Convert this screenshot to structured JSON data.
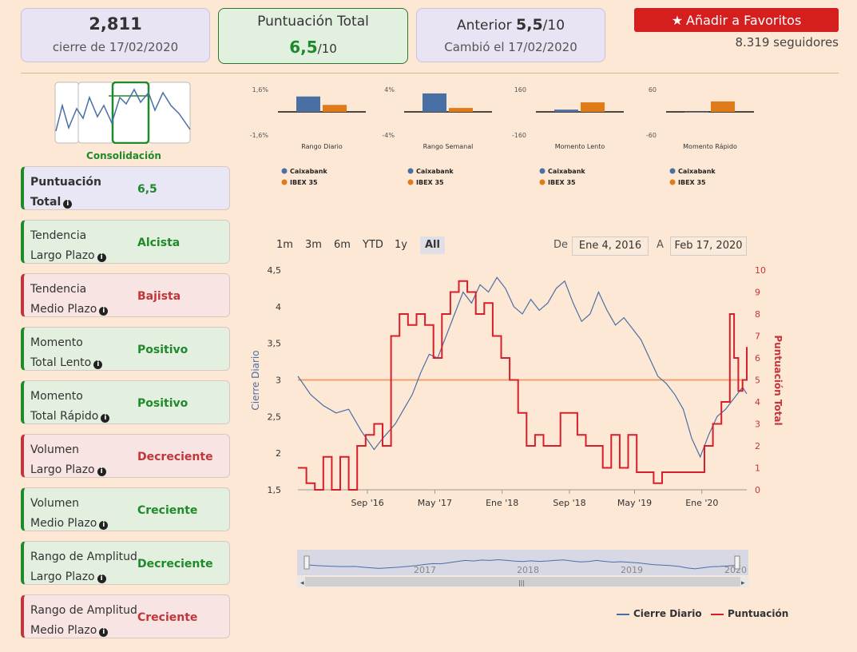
{
  "header": {
    "price_value": "2,811",
    "price_sub": "cierre de 17/02/2020",
    "total_title": "Puntuación Total",
    "total_score": "6,5",
    "total_suffix": "/10",
    "prev_label": "Anterior ",
    "prev_score": "5,5",
    "prev_suffix": "/10",
    "prev_sub": "Cambió el 17/02/2020",
    "fav_label": "Añadir a Favoritos",
    "followers": "8.319 seguidores"
  },
  "phase_label": "Consolidación",
  "cards": [
    {
      "l1": "Puntuación",
      "l2": "Total",
      "value": "6,5",
      "tone": "p"
    },
    {
      "l1": "Tendencia",
      "l2": "Largo Plazo",
      "value": "Alcista",
      "tone": "g"
    },
    {
      "l1": "Tendencia",
      "l2": "Medio Plazo",
      "value": "Bajista",
      "tone": "r"
    },
    {
      "l1": "Momento",
      "l2": "Total Lento",
      "value": "Positivo",
      "tone": "g"
    },
    {
      "l1": "Momento",
      "l2": "Total Rápido",
      "value": "Positivo",
      "tone": "g"
    },
    {
      "l1": "Volumen",
      "l2": "Largo Plazo",
      "value": "Decreciente",
      "tone": "r"
    },
    {
      "l1": "Volumen",
      "l2": "Medio Plazo",
      "value": "Creciente",
      "tone": "g"
    },
    {
      "l1": "Rango de Amplitud",
      "l2": "Largo Plazo",
      "value": "Decreciente",
      "tone": "g"
    },
    {
      "l1": "Rango de Amplitud",
      "l2": "Medio Plazo",
      "value": "Creciente",
      "tone": "r"
    }
  ],
  "range": {
    "buttons": [
      "1m",
      "3m",
      "6m",
      "YTD",
      "1y",
      "All"
    ],
    "selected": "All",
    "from_label": "De",
    "from_value": "Ene 4, 2016",
    "to_label": "A",
    "to_value": "Feb 17, 2020"
  },
  "navigator_labels": [
    "2017",
    "2018",
    "2019",
    "2020"
  ],
  "legend": {
    "series1": "Cierre Diario",
    "series2": "Puntuación"
  },
  "colors": {
    "caixa": "#4a6fa5",
    "ibex": "#e07b1a",
    "line": "#4a6fa5",
    "score": "#d51f2a",
    "ref": "#f0a070"
  },
  "chart_data": [
    {
      "type": "bar",
      "title": "Rango Diario",
      "categories": [
        "Caixabank",
        "IBEX 35"
      ],
      "values": [
        1.1,
        0.5
      ],
      "ylim": [
        -1.6,
        1.6
      ],
      "ytick_labels": [
        "1,6%",
        "-1,6%"
      ]
    },
    {
      "type": "bar",
      "title": "Rango Semanal",
      "categories": [
        "Caixabank",
        "IBEX 35"
      ],
      "values": [
        3.3,
        0.7
      ],
      "ylim": [
        -4,
        4
      ],
      "ytick_labels": [
        "4%",
        "-4%"
      ]
    },
    {
      "type": "bar",
      "title": "Momento Lento",
      "categories": [
        "Caixabank",
        "IBEX 35"
      ],
      "values": [
        16,
        68
      ],
      "ylim": [
        -160,
        160
      ],
      "ytick_labels": [
        "160",
        "-160"
      ]
    },
    {
      "type": "bar",
      "title": "Momento Rápido",
      "categories": [
        "Caixabank",
        "IBEX 35"
      ],
      "values": [
        0,
        28
      ],
      "ylim": [
        -60,
        60
      ],
      "ytick_labels": [
        "60",
        "-60"
      ]
    },
    {
      "type": "line",
      "xlabel": "",
      "ylabel": "Cierre Diario",
      "ylabel_right": "Puntuación Total",
      "ylim": [
        1.5,
        4.5
      ],
      "ylim_right": [
        0,
        10
      ],
      "yticks": [
        "1,5",
        "2",
        "2,5",
        "3",
        "3,5",
        "4",
        "4,5"
      ],
      "yticks_right": [
        "0",
        "1",
        "2",
        "3",
        "4",
        "5",
        "6",
        "7",
        "8",
        "9",
        "10"
      ],
      "xticks": [
        "Sep '16",
        "May '17",
        "Ene '18",
        "Sep '18",
        "May '19",
        "Ene '20"
      ],
      "reference_line": 3.0,
      "series": [
        {
          "name": "Cierre Diario",
          "axis": "left",
          "points": [
            [
              0,
              3.05
            ],
            [
              0.03,
              2.8
            ],
            [
              0.06,
              2.65
            ],
            [
              0.09,
              2.55
            ],
            [
              0.12,
              2.6
            ],
            [
              0.15,
              2.3
            ],
            [
              0.18,
              2.05
            ],
            [
              0.2,
              2.2
            ],
            [
              0.23,
              2.4
            ],
            [
              0.25,
              2.6
            ],
            [
              0.27,
              2.8
            ],
            [
              0.29,
              3.1
            ],
            [
              0.31,
              3.35
            ],
            [
              0.33,
              3.3
            ],
            [
              0.35,
              3.6
            ],
            [
              0.37,
              3.9
            ],
            [
              0.39,
              4.2
            ],
            [
              0.41,
              4.05
            ],
            [
              0.43,
              4.3
            ],
            [
              0.45,
              4.2
            ],
            [
              0.47,
              4.4
            ],
            [
              0.49,
              4.25
            ],
            [
              0.51,
              4.0
            ],
            [
              0.53,
              3.9
            ],
            [
              0.55,
              4.1
            ],
            [
              0.57,
              3.95
            ],
            [
              0.59,
              4.05
            ],
            [
              0.61,
              4.25
            ],
            [
              0.63,
              4.35
            ],
            [
              0.65,
              4.05
            ],
            [
              0.67,
              3.8
            ],
            [
              0.69,
              3.9
            ],
            [
              0.71,
              4.2
            ],
            [
              0.73,
              3.95
            ],
            [
              0.75,
              3.75
            ],
            [
              0.77,
              3.85
            ],
            [
              0.79,
              3.7
            ],
            [
              0.81,
              3.55
            ],
            [
              0.83,
              3.3
            ],
            [
              0.85,
              3.05
            ],
            [
              0.87,
              2.95
            ],
            [
              0.89,
              2.8
            ],
            [
              0.91,
              2.6
            ],
            [
              0.93,
              2.2
            ],
            [
              0.95,
              1.95
            ],
            [
              0.97,
              2.25
            ],
            [
              0.99,
              2.5
            ],
            [
              1.01,
              2.6
            ],
            [
              1.03,
              2.75
            ],
            [
              1.05,
              2.9
            ],
            [
              1.06,
              2.811
            ]
          ]
        },
        {
          "name": "Puntuación",
          "axis": "right",
          "points": [
            [
              0,
              1
            ],
            [
              0.02,
              0.3
            ],
            [
              0.04,
              0
            ],
            [
              0.06,
              1.5
            ],
            [
              0.08,
              0
            ],
            [
              0.1,
              1.5
            ],
            [
              0.12,
              0
            ],
            [
              0.14,
              2
            ],
            [
              0.16,
              2.5
            ],
            [
              0.18,
              3
            ],
            [
              0.2,
              2
            ],
            [
              0.22,
              7
            ],
            [
              0.24,
              8
            ],
            [
              0.26,
              7.5
            ],
            [
              0.28,
              8
            ],
            [
              0.3,
              7.5
            ],
            [
              0.32,
              6
            ],
            [
              0.34,
              8
            ],
            [
              0.36,
              9
            ],
            [
              0.38,
              9.5
            ],
            [
              0.4,
              9
            ],
            [
              0.42,
              8
            ],
            [
              0.44,
              8.5
            ],
            [
              0.46,
              7
            ],
            [
              0.48,
              6
            ],
            [
              0.5,
              5
            ],
            [
              0.52,
              3.5
            ],
            [
              0.54,
              2
            ],
            [
              0.56,
              2.5
            ],
            [
              0.58,
              2
            ],
            [
              0.6,
              2
            ],
            [
              0.62,
              3.5
            ],
            [
              0.64,
              3.5
            ],
            [
              0.66,
              2.5
            ],
            [
              0.68,
              2
            ],
            [
              0.7,
              2
            ],
            [
              0.72,
              1
            ],
            [
              0.74,
              2.5
            ],
            [
              0.76,
              1
            ],
            [
              0.78,
              2.5
            ],
            [
              0.8,
              0.8
            ],
            [
              0.82,
              0.8
            ],
            [
              0.84,
              0.3
            ],
            [
              0.86,
              0.8
            ],
            [
              0.88,
              0.8
            ],
            [
              0.9,
              0.8
            ],
            [
              0.92,
              0.8
            ],
            [
              0.94,
              0.8
            ],
            [
              0.96,
              2
            ],
            [
              0.98,
              3
            ],
            [
              1.0,
              4
            ],
            [
              1.02,
              8
            ],
            [
              1.03,
              6
            ],
            [
              1.04,
              4.5
            ],
            [
              1.05,
              5
            ],
            [
              1.06,
              6.5
            ]
          ]
        }
      ]
    }
  ]
}
